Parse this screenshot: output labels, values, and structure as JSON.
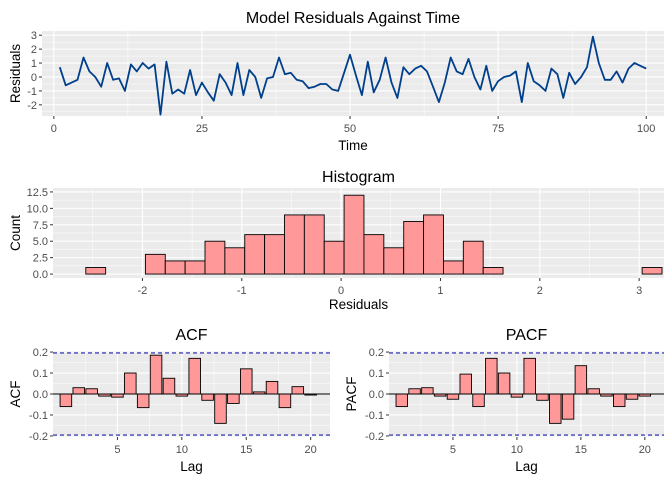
{
  "chart_data": [
    {
      "id": "residuals",
      "type": "line",
      "title": "Model Residuals Against Time",
      "xlabel": "Time",
      "ylabel": "Residuals",
      "xlim": [
        -2,
        103
      ],
      "ylim": [
        -2.8,
        3.3
      ],
      "xticks": [
        0,
        25,
        50,
        75,
        100
      ],
      "yticks": [
        -2,
        -1,
        0,
        1,
        2,
        3
      ],
      "grid": true,
      "color": "#003F8C",
      "x": [
        1,
        2,
        3,
        4,
        5,
        6,
        7,
        8,
        9,
        10,
        11,
        12,
        13,
        14,
        15,
        16,
        17,
        18,
        19,
        20,
        21,
        22,
        23,
        24,
        25,
        26,
        27,
        28,
        29,
        30,
        31,
        32,
        33,
        34,
        35,
        36,
        37,
        38,
        39,
        40,
        41,
        42,
        43,
        44,
        45,
        46,
        47,
        48,
        49,
        50,
        51,
        52,
        53,
        54,
        55,
        56,
        57,
        58,
        59,
        60,
        61,
        62,
        63,
        64,
        65,
        66,
        67,
        68,
        69,
        70,
        71,
        72,
        73,
        74,
        75,
        76,
        77,
        78,
        79,
        80,
        81,
        82,
        83,
        84,
        85,
        86,
        87,
        88,
        89,
        90,
        91,
        92,
        93,
        94,
        95,
        96,
        97,
        98,
        99,
        100
      ],
      "y": [
        0.7,
        -0.6,
        -0.4,
        -0.2,
        1.4,
        0.4,
        0.0,
        -0.7,
        1.0,
        -0.2,
        -0.1,
        -1.0,
        0.9,
        0.4,
        1.0,
        0.6,
        0.9,
        -2.7,
        1.1,
        -1.2,
        -0.9,
        -1.2,
        0.5,
        -1.3,
        -0.4,
        -1.1,
        -1.7,
        0.2,
        -0.4,
        -1.3,
        1.0,
        -1.3,
        0.5,
        0.0,
        -1.5,
        -0.1,
        0.0,
        1.4,
        0.2,
        0.3,
        -0.2,
        -0.3,
        -0.8,
        -0.7,
        -0.5,
        -0.5,
        -0.9,
        -1.0,
        0.3,
        1.6,
        0.1,
        -1.3,
        1.1,
        -1.1,
        -0.2,
        1.4,
        -0.4,
        -1.5,
        0.7,
        0.2,
        0.6,
        0.8,
        0.4,
        -0.7,
        -1.8,
        -0.4,
        1.4,
        0.4,
        0.2,
        1.3,
        0.0,
        -0.9,
        0.8,
        -1.0,
        -0.3,
        0.0,
        0.1,
        0.4,
        -1.8,
        1.0,
        -0.3,
        -0.6,
        -1.0,
        0.6,
        0.2,
        -1.5,
        0.3,
        -0.5,
        0.0,
        0.7,
        2.9,
        1.0,
        -0.2,
        -0.2,
        0.4,
        -0.4,
        0.6,
        1.0,
        0.8,
        0.6
      ]
    },
    {
      "id": "histogram",
      "type": "bar",
      "title": "Histogram",
      "xlabel": "Residuals",
      "ylabel": "Count",
      "xlim": [
        -2.9,
        3.25
      ],
      "ylim": [
        -0.6,
        13.1
      ],
      "xticks": [
        -2,
        -1,
        0,
        1,
        2,
        3
      ],
      "yticks": [
        0.0,
        2.5,
        5.0,
        7.5,
        10.0,
        12.5
      ],
      "ytick_labels": [
        "0.0",
        "2.5",
        "5.0",
        "7.5",
        "10.0",
        "12.5"
      ],
      "grid": true,
      "fill": "#FF9999",
      "stroke": "#000000",
      "bin_width": 0.2,
      "bin_centers": [
        -2.47,
        -2.27,
        -2.07,
        -1.87,
        -1.67,
        -1.47,
        -1.27,
        -1.07,
        -0.87,
        -0.67,
        -0.47,
        -0.27,
        -0.07,
        0.13,
        0.33,
        0.53,
        0.73,
        0.93,
        1.13,
        1.33,
        1.53,
        1.73,
        1.93,
        2.13,
        2.33,
        2.53,
        2.73,
        2.93,
        3.13
      ],
      "values": [
        1,
        0,
        0,
        3,
        2,
        2,
        5,
        4,
        6,
        6,
        9,
        9,
        5,
        12,
        6,
        4,
        8,
        9,
        2,
        5,
        1,
        0,
        0,
        0,
        0,
        0,
        0,
        0,
        1
      ]
    },
    {
      "id": "acf",
      "type": "bar",
      "title": "ACF",
      "xlabel": "Lag",
      "ylabel": "ACF",
      "xlim": [
        0,
        21.5
      ],
      "ylim": [
        -0.205,
        0.205
      ],
      "xticks": [
        5,
        10,
        15,
        20
      ],
      "yticks": [
        -0.2,
        -0.1,
        0.0,
        0.1,
        0.2
      ],
      "ytick_labels": [
        "-0.2",
        "-0.1",
        "0.0",
        "0.1",
        "0.2"
      ],
      "grid": true,
      "confidence_bound": 0.196,
      "bound_color": "#1a1aaa",
      "fill": "#FF9999",
      "stroke": "#000000",
      "bar_width": 0.9,
      "lags": [
        1,
        2,
        3,
        4,
        5,
        6,
        7,
        8,
        9,
        10,
        11,
        12,
        13,
        14,
        15,
        16,
        17,
        18,
        19,
        20
      ],
      "values": [
        -0.06,
        0.03,
        0.025,
        -0.01,
        -0.015,
        0.1,
        -0.065,
        0.185,
        0.075,
        -0.01,
        0.17,
        -0.03,
        -0.14,
        -0.045,
        0.12,
        0.01,
        0.06,
        -0.065,
        0.035,
        -0.005
      ]
    },
    {
      "id": "pacf",
      "type": "bar",
      "title": "PACF",
      "xlabel": "Lag",
      "ylabel": "PACF",
      "xlim": [
        0,
        21.5
      ],
      "ylim": [
        -0.205,
        0.205
      ],
      "xticks": [
        5,
        10,
        15,
        20
      ],
      "yticks": [
        -0.2,
        -0.1,
        0.0,
        0.1,
        0.2
      ],
      "ytick_labels": [
        "-0.2",
        "-0.1",
        "0.0",
        "0.1",
        "0.2"
      ],
      "grid": true,
      "confidence_bound": 0.196,
      "bound_color": "#1a1aaa",
      "fill": "#FF9999",
      "stroke": "#000000",
      "bar_width": 0.9,
      "lags": [
        1,
        2,
        3,
        4,
        5,
        6,
        7,
        8,
        9,
        10,
        11,
        12,
        13,
        14,
        15,
        16,
        17,
        18,
        19,
        20
      ],
      "values": [
        -0.06,
        0.025,
        0.03,
        -0.01,
        -0.025,
        0.095,
        -0.06,
        0.17,
        0.1,
        -0.015,
        0.17,
        -0.03,
        -0.14,
        -0.12,
        0.135,
        0.025,
        -0.01,
        -0.06,
        -0.025,
        -0.01
      ]
    }
  ]
}
